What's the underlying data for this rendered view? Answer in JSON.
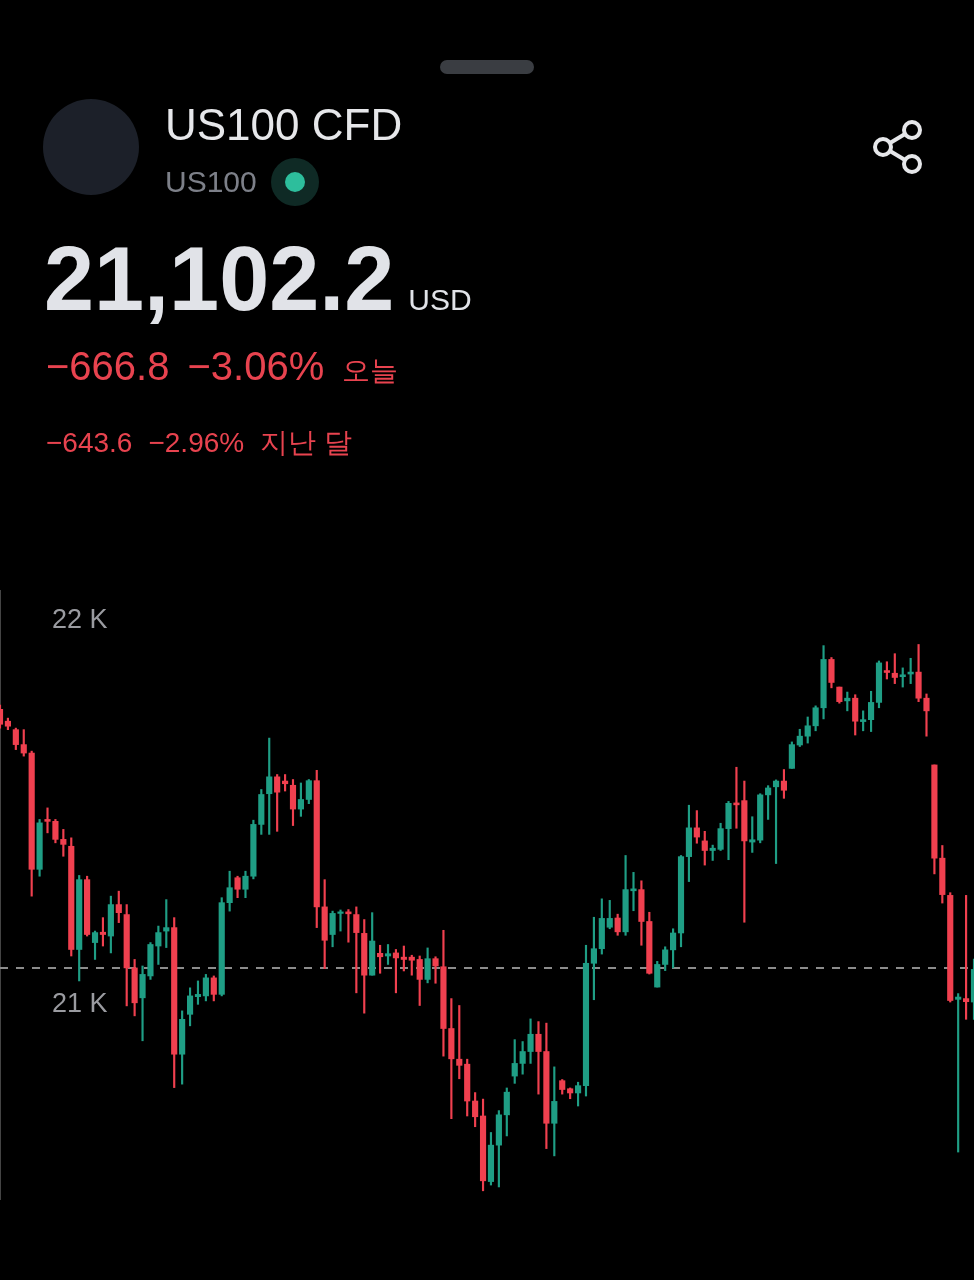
{
  "chart_data": {
    "type": "candlestick",
    "title": "US100 CFD",
    "subtitle": "US100",
    "annotations": [
      "21,102.2",
      "USD",
      "−666.8",
      "−3.06%",
      "오늘",
      "−643.6",
      "−2.96%",
      "지난 달"
    ],
    "categories": [
      null,
      null,
      null,
      null,
      null,
      null,
      null,
      null,
      null,
      null,
      null,
      null,
      null,
      null,
      null,
      null,
      null,
      null,
      null,
      null,
      null,
      null,
      null,
      null,
      null,
      null,
      null,
      null,
      null,
      null,
      null,
      null,
      null,
      null,
      null,
      null,
      null,
      null,
      null,
      null,
      null,
      null,
      null,
      null,
      null,
      null,
      null,
      null,
      null,
      null,
      null,
      null,
      null,
      null,
      null,
      null,
      null,
      null,
      null,
      null,
      null,
      null,
      null,
      null,
      null,
      null,
      null,
      null,
      null,
      null,
      null,
      null,
      null,
      null,
      null,
      null,
      null,
      null,
      null,
      null,
      null,
      null,
      null,
      null,
      null,
      null,
      null,
      null,
      null,
      null,
      null,
      null,
      null,
      null,
      null,
      null,
      null,
      null,
      null,
      null,
      null,
      null,
      null,
      null,
      null,
      null,
      null,
      null,
      null,
      null,
      null,
      null,
      null,
      null,
      null,
      null,
      null,
      null,
      null,
      null,
      null,
      null,
      null,
      null
    ],
    "ohlc": [
      [
        21769,
        21780,
        21720,
        21730
      ],
      [
        21738,
        21746,
        21716,
        21725
      ],
      [
        21716,
        21720,
        21664,
        21677
      ],
      [
        21677,
        21716,
        21647,
        21655
      ],
      [
        21655,
        21660,
        21282,
        21352
      ],
      [
        21352,
        21482,
        21334,
        21473
      ],
      [
        21482,
        21512,
        21447,
        21477
      ],
      [
        21477,
        21482,
        21421,
        21430
      ],
      [
        21430,
        21456,
        21386,
        21417
      ],
      [
        21412,
        21434,
        21126,
        21143
      ],
      [
        21143,
        21336,
        21061,
        21325
      ],
      [
        21325,
        21334,
        21178,
        21182
      ],
      [
        21161,
        21191,
        21117,
        21187
      ],
      [
        21188,
        21226,
        21152,
        21182
      ],
      [
        21178,
        21282,
        21134,
        21260
      ],
      [
        21260,
        21295,
        21213,
        21239
      ],
      [
        21234,
        21260,
        20996,
        21095
      ],
      [
        21095,
        21117,
        20970,
        21004
      ],
      [
        21017,
        21100,
        20905,
        21078
      ],
      [
        21074,
        21161,
        21065,
        21156
      ],
      [
        21152,
        21204,
        21104,
        21187
      ],
      [
        21191,
        21273,
        21148,
        21200
      ],
      [
        21200,
        21226,
        20783,
        20870
      ],
      [
        20870,
        20983,
        20792,
        20961
      ],
      [
        20974,
        21043,
        20944,
        21022
      ],
      [
        21020,
        21061,
        21000,
        21026
      ],
      [
        21022,
        21078,
        21009,
        21069
      ],
      [
        21069,
        21074,
        21009,
        21026
      ],
      [
        21026,
        21278,
        21022,
        21265
      ],
      [
        21265,
        21347,
        21243,
        21304
      ],
      [
        21330,
        21334,
        21278,
        21300
      ],
      [
        21300,
        21347,
        21278,
        21334
      ],
      [
        21334,
        21480,
        21327,
        21469
      ],
      [
        21469,
        21560,
        21443,
        21547
      ],
      [
        21549,
        21694,
        21443,
        21593
      ],
      [
        21593,
        21599,
        21451,
        21553
      ],
      [
        21582,
        21599,
        21556,
        21575
      ],
      [
        21571,
        21586,
        21466,
        21509
      ],
      [
        21509,
        21577,
        21490,
        21534
      ],
      [
        21534,
        21586,
        21523,
        21583
      ],
      [
        21583,
        21610,
        21200,
        21254
      ],
      [
        21254,
        21325,
        21093,
        21167
      ],
      [
        21182,
        21243,
        21150,
        21237
      ],
      [
        21237,
        21246,
        21191,
        21241
      ],
      [
        21241,
        21247,
        21162,
        21236
      ],
      [
        21234,
        21254,
        21030,
        21187
      ],
      [
        21185,
        21221,
        20977,
        21076
      ],
      [
        21076,
        21239,
        21076,
        21165
      ],
      [
        21133,
        21154,
        21081,
        21124
      ],
      [
        21126,
        21156,
        21104,
        21132
      ],
      [
        21134,
        21143,
        21030,
        21121
      ],
      [
        21123,
        21152,
        21087,
        21117
      ],
      [
        21123,
        21128,
        21076,
        21115
      ],
      [
        21117,
        21126,
        20997,
        21065
      ],
      [
        21065,
        21147,
        21056,
        21119
      ],
      [
        21119,
        21124,
        21055,
        21100
      ],
      [
        21098,
        21193,
        20865,
        20937
      ],
      [
        20937,
        21015,
        20702,
        20858
      ],
      [
        20857,
        20997,
        20806,
        20841
      ],
      [
        20844,
        20857,
        20709,
        20748
      ],
      [
        20748,
        20770,
        20681,
        20707
      ],
      [
        20709,
        20753,
        20514,
        20540
      ],
      [
        20538,
        20666,
        20529,
        20633
      ],
      [
        20633,
        20723,
        20524,
        20712
      ],
      [
        20712,
        20782,
        20657,
        20771
      ],
      [
        20813,
        20908,
        20794,
        20846
      ],
      [
        20846,
        20903,
        20818,
        20877
      ],
      [
        20877,
        20962,
        20846,
        20922
      ],
      [
        20922,
        20955,
        20766,
        20877
      ],
      [
        20877,
        20951,
        20624,
        20690
      ],
      [
        20690,
        20837,
        20605,
        20747
      ],
      [
        20801,
        20804,
        20766,
        20778
      ],
      [
        20780,
        20782,
        20754,
        20769
      ],
      [
        20769,
        20797,
        20735,
        20788
      ],
      [
        20788,
        21154,
        20761,
        21107
      ],
      [
        21107,
        21227,
        21012,
        21145
      ],
      [
        21145,
        21275,
        21131,
        21224
      ],
      [
        21201,
        21271,
        21197,
        21224
      ],
      [
        21225,
        21235,
        21180,
        21189
      ],
      [
        21189,
        21388,
        21180,
        21299
      ],
      [
        21296,
        21344,
        21244,
        21301
      ],
      [
        21299,
        21322,
        21154,
        21216
      ],
      [
        21216,
        21240,
        21079,
        21081
      ],
      [
        21045,
        21112,
        21045,
        21104
      ],
      [
        21104,
        21150,
        21088,
        21142
      ],
      [
        21142,
        21197,
        21095,
        21186
      ],
      [
        21186,
        21388,
        21150,
        21385
      ],
      [
        21385,
        21519,
        21320,
        21460
      ],
      [
        21460,
        21505,
        21420,
        21436
      ],
      [
        21426,
        21451,
        21363,
        21401
      ],
      [
        21401,
        21415,
        21375,
        21407
      ],
      [
        21404,
        21472,
        21401,
        21458
      ],
      [
        21458,
        21529,
        21377,
        21524
      ],
      [
        21525,
        21618,
        21459,
        21520
      ],
      [
        21531,
        21582,
        21214,
        21426
      ],
      [
        21423,
        21489,
        21396,
        21429
      ],
      [
        21428,
        21549,
        21421,
        21546
      ],
      [
        21546,
        21570,
        21482,
        21564
      ],
      [
        21567,
        21585,
        21367,
        21582
      ],
      [
        21582,
        21612,
        21537,
        21558
      ],
      [
        21615,
        21684,
        21615,
        21677
      ],
      [
        21676,
        21717,
        21672,
        21699
      ],
      [
        21699,
        21749,
        21681,
        21726
      ],
      [
        21726,
        21778,
        21713,
        21773
      ],
      [
        21773,
        21935,
        21744,
        21899
      ],
      [
        21899,
        21904,
        21825,
        21839
      ],
      [
        21827,
        21827,
        21785,
        21789
      ],
      [
        21791,
        21814,
        21765,
        21798
      ],
      [
        21798,
        21807,
        21702,
        21738
      ],
      [
        21737,
        21765,
        21713,
        21742
      ],
      [
        21742,
        21816,
        21711,
        21787
      ],
      [
        21787,
        21895,
        21773,
        21890
      ],
      [
        21870,
        21893,
        21848,
        21865
      ],
      [
        21863,
        21914,
        21836,
        21852
      ],
      [
        21854,
        21877,
        21827,
        21859
      ],
      [
        21861,
        21902,
        21836,
        21866
      ],
      [
        21866,
        21938,
        21789,
        21798
      ],
      [
        21798,
        21809,
        21699,
        21765
      ],
      [
        21624,
        21624,
        21340,
        21381
      ],
      [
        21381,
        21414,
        21264,
        21286
      ],
      [
        21284,
        21291,
        21006,
        21010
      ],
      [
        21013,
        21028,
        20615,
        21019
      ],
      [
        21015,
        21284,
        20961,
        21007
      ],
      [
        21006,
        21118,
        20961,
        21091
      ]
    ],
    "colors": [
      "#f0404f",
      "#f0404f",
      "#f0404f",
      "#f0404f",
      "#f0404f",
      "#1f9e85",
      "#f0404f",
      "#f0404f",
      "#f0404f",
      "#f0404f",
      "#1f9e85",
      "#f0404f",
      "#1f9e85",
      "#f0404f",
      "#1f9e85",
      "#f0404f",
      "#f0404f",
      "#f0404f",
      "#1f9e85",
      "#1f9e85",
      "#1f9e85",
      "#1f9e85",
      "#f0404f",
      "#1f9e85",
      "#1f9e85",
      "#1f9e85",
      "#1f9e85",
      "#f0404f",
      "#1f9e85",
      "#1f9e85",
      "#f0404f",
      "#1f9e85",
      "#1f9e85",
      "#1f9e85",
      "#1f9e85",
      "#f0404f",
      "#f0404f",
      "#f0404f",
      "#1f9e85",
      "#1f9e85",
      "#f0404f",
      "#f0404f",
      "#1f9e85",
      "#1f9e85",
      "#f0404f",
      "#f0404f",
      "#f0404f",
      "#1f9e85",
      "#f0404f",
      "#1f9e85",
      "#f0404f",
      "#f0404f",
      "#f0404f",
      "#f0404f",
      "#1f9e85",
      "#f0404f",
      "#f0404f",
      "#f0404f",
      "#f0404f",
      "#f0404f",
      "#f0404f",
      "#f0404f",
      "#1f9e85",
      "#1f9e85",
      "#1f9e85",
      "#1f9e85",
      "#1f9e85",
      "#1f9e85",
      "#f0404f",
      "#f0404f",
      "#1f9e85",
      "#f0404f",
      "#f0404f",
      "#1f9e85",
      "#1f9e85",
      "#1f9e85",
      "#1f9e85",
      "#1f9e85",
      "#f0404f",
      "#1f9e85",
      "#1f9e85",
      "#f0404f",
      "#f0404f",
      "#1f9e85",
      "#1f9e85",
      "#1f9e85",
      "#1f9e85",
      "#1f9e85",
      "#f0404f",
      "#f0404f",
      "#1f9e85",
      "#1f9e85",
      "#1f9e85",
      "#f0404f",
      "#f0404f",
      "#1f9e85",
      "#1f9e85",
      "#1f9e85",
      "#1f9e85",
      "#f0404f",
      "#1f9e85",
      "#1f9e85",
      "#1f9e85",
      "#1f9e85",
      "#1f9e85",
      "#f0404f",
      "#f0404f",
      "#1f9e85",
      "#f0404f",
      "#1f9e85",
      "#1f9e85",
      "#1f9e85",
      "#f0404f",
      "#f0404f",
      "#1f9e85",
      "#1f9e85",
      "#f0404f",
      "#f0404f",
      "#f0404f",
      "#f0404f",
      "#f0404f",
      "#1f9e85",
      "#f0404f",
      "#1f9e85"
    ],
    "ylim": [
      20490,
      22080
    ],
    "yticks": [
      {
        "value": 21000,
        "label": "21 K"
      },
      {
        "value": 22000,
        "label": "22 K"
      }
    ],
    "ref_lines": [
      {
        "axis": "y",
        "value": 21095,
        "color": "#8c8c8c",
        "line_style": "dashed"
      }
    ],
    "tick_labels": "y"
  }
}
